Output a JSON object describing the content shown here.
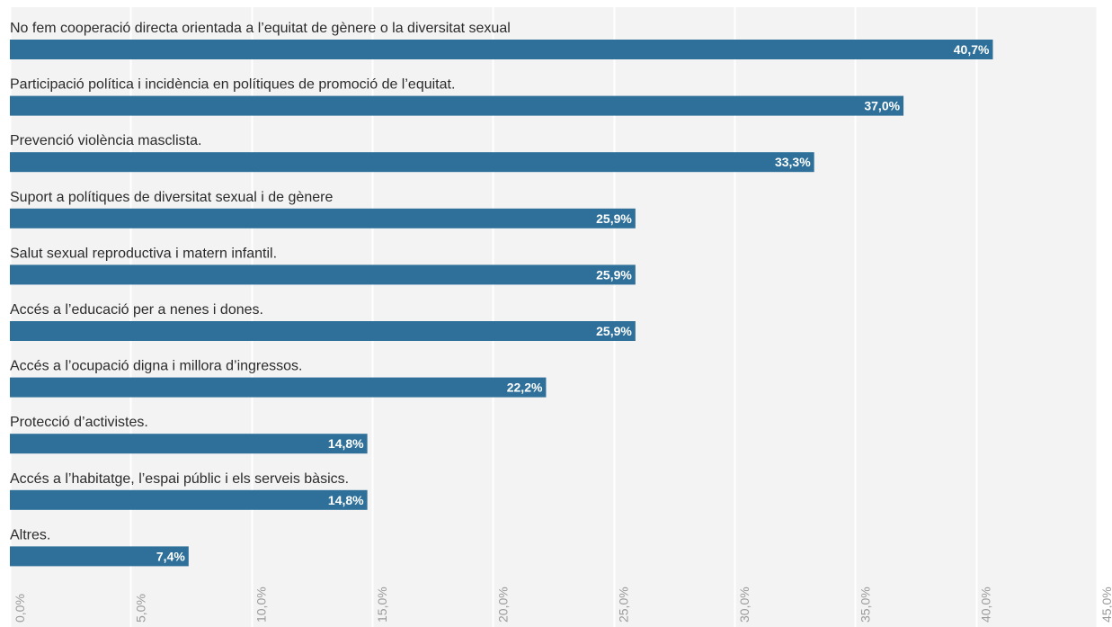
{
  "chart_data": {
    "type": "bar",
    "orientation": "horizontal",
    "title": "",
    "xlabel": "",
    "ylabel": "",
    "xlim": [
      0,
      45
    ],
    "grid": true,
    "legend": "none",
    "categories": [
      "No fem cooperació directa orientada a l’equitat de gènere o la diversitat sexual",
      "Participació política i incidència en polítiques de promoció de l’equitat.",
      "Prevenció violència masclista.",
      "Suport a polítiques de diversitat sexual i de gènere",
      "Salut sexual reproductiva i matern infantil.",
      "Accés a l’educació per a nenes i dones.",
      "Accés a l’ocupació digna i millora d’ingressos.",
      "Protecció d’activistes.",
      "Accés a l’habitatge, l’espai públic i els serveis bàsics.",
      "Altres."
    ],
    "values": [
      40.7,
      37.0,
      33.3,
      25.9,
      25.9,
      25.9,
      22.2,
      14.8,
      14.8,
      7.4
    ],
    "data_labels": [
      "40,7%",
      "37,0%",
      "33,3%",
      "25,9%",
      "25,9%",
      "25,9%",
      "22,2%",
      "14,8%",
      "14,8%",
      "7,4%"
    ],
    "ticks": [
      0,
      5,
      10,
      15,
      20,
      25,
      30,
      35,
      40,
      45
    ],
    "tick_labels": [
      "0,0%",
      "5,0%",
      "10,0%",
      "15,0%",
      "20,0%",
      "25,0%",
      "30,0%",
      "35,0%",
      "40,0%",
      "45,0%"
    ],
    "colors": {
      "bar": "#2e7099",
      "plot_background": "#f3f3f3",
      "gridline": "#ffffff",
      "label_text": "#2b2b2b",
      "data_label_text": "#ffffff",
      "tick_text": "#9a9a9a"
    }
  }
}
